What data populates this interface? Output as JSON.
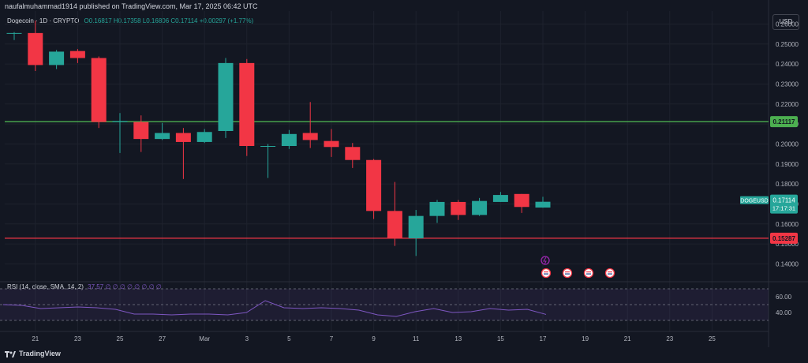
{
  "header": {
    "published": "naufalmuhammad1914 published on TradingView.com, Mar 17, 2025 06:42 UTC",
    "symbol": "Dogecoin · 1D · CRYPTO",
    "ohlc": "O0.16817 H0.17358 L0.16806 C0.17114 +0.00297 (+1.77%)",
    "currency": "USD"
  },
  "rsi": {
    "label": "RSI (14, close, SMA, 14, 2)",
    "value": "37.57 ∅ ∅ ∅ ∅ ∅ ∅ ∅ ∅",
    "ticks": [
      "60.00",
      "40.00"
    ]
  },
  "footer": {
    "brand": "TradingView"
  },
  "colors": {
    "up": "#26a69a",
    "down": "#f23645",
    "support": "#f23645",
    "resistance": "#4caf50",
    "rsi_line": "#7e57c2"
  },
  "chart_data": {
    "type": "candlestick",
    "title": "Dogecoin · 1D · CRYPTO",
    "ylim": [
      0.1315,
      0.2665
    ],
    "y_ticks": [
      "0.26000",
      "0.25000",
      "0.24000",
      "0.23000",
      "0.22000",
      "0.21000",
      "0.20000",
      "0.19000",
      "0.18000",
      "0.17000",
      "0.16000",
      "0.15000",
      "0.14000"
    ],
    "x_ticks": [
      "21",
      "23",
      "25",
      "27",
      "Mar",
      "3",
      "5",
      "7",
      "9",
      "11",
      "13",
      "15",
      "17",
      "19",
      "21",
      "23",
      "25"
    ],
    "candles": [
      {
        "o": 0.2555,
        "h": 0.256,
        "l": 0.252,
        "c": 0.2555
      },
      {
        "o": 0.2555,
        "h": 0.2617,
        "l": 0.2365,
        "c": 0.2395
      },
      {
        "o": 0.2395,
        "h": 0.247,
        "l": 0.2375,
        "c": 0.2462
      },
      {
        "o": 0.2465,
        "h": 0.2475,
        "l": 0.2405,
        "c": 0.243
      },
      {
        "o": 0.243,
        "h": 0.2438,
        "l": 0.208,
        "c": 0.211
      },
      {
        "o": 0.211,
        "h": 0.2155,
        "l": 0.1955,
        "c": 0.2115
      },
      {
        "o": 0.211,
        "h": 0.2143,
        "l": 0.196,
        "c": 0.2025
      },
      {
        "o": 0.2025,
        "h": 0.2105,
        "l": 0.202,
        "c": 0.2055
      },
      {
        "o": 0.2055,
        "h": 0.208,
        "l": 0.1825,
        "c": 0.201
      },
      {
        "o": 0.201,
        "h": 0.2075,
        "l": 0.2005,
        "c": 0.206
      },
      {
        "o": 0.2065,
        "h": 0.243,
        "l": 0.203,
        "c": 0.2405
      },
      {
        "o": 0.2405,
        "h": 0.2425,
        "l": 0.194,
        "c": 0.199
      },
      {
        "o": 0.199,
        "h": 0.2,
        "l": 0.183,
        "c": 0.199
      },
      {
        "o": 0.199,
        "h": 0.207,
        "l": 0.1975,
        "c": 0.205
      },
      {
        "o": 0.2055,
        "h": 0.221,
        "l": 0.198,
        "c": 0.202
      },
      {
        "o": 0.2015,
        "h": 0.2075,
        "l": 0.1935,
        "c": 0.1985
      },
      {
        "o": 0.1985,
        "h": 0.2005,
        "l": 0.188,
        "c": 0.192
      },
      {
        "o": 0.192,
        "h": 0.1925,
        "l": 0.1625,
        "c": 0.1665
      },
      {
        "o": 0.1665,
        "h": 0.181,
        "l": 0.149,
        "c": 0.1528
      },
      {
        "o": 0.1528,
        "h": 0.167,
        "l": 0.144,
        "c": 0.164
      },
      {
        "o": 0.164,
        "h": 0.172,
        "l": 0.1605,
        "c": 0.171
      },
      {
        "o": 0.171,
        "h": 0.172,
        "l": 0.162,
        "c": 0.1645
      },
      {
        "o": 0.1645,
        "h": 0.173,
        "l": 0.164,
        "c": 0.1715
      },
      {
        "o": 0.171,
        "h": 0.176,
        "l": 0.171,
        "c": 0.1745
      },
      {
        "o": 0.175,
        "h": 0.175,
        "l": 0.1655,
        "c": 0.1685
      },
      {
        "o": 0.1682,
        "h": 0.1736,
        "l": 0.1681,
        "c": 0.1711
      }
    ],
    "levels": [
      {
        "value": 0.21117,
        "label": "0.21117",
        "color": "#4caf50"
      },
      {
        "value": 0.15287,
        "label": "0.15287",
        "color": "#f23645"
      }
    ],
    "price_label": {
      "symbol": "DOGEUSD",
      "price": "0.17114",
      "countdown": "17:17:31",
      "value": 0.17114
    },
    "rsi_series": [
      50,
      49,
      45,
      46,
      47,
      46,
      44,
      38,
      38,
      37,
      38,
      38,
      37,
      40,
      55,
      46,
      45,
      46,
      45,
      43,
      37,
      35,
      41,
      45,
      40,
      41,
      45,
      43,
      44,
      37.57
    ],
    "rsi_ylim": [
      20,
      75
    ],
    "event_icons": 5
  }
}
